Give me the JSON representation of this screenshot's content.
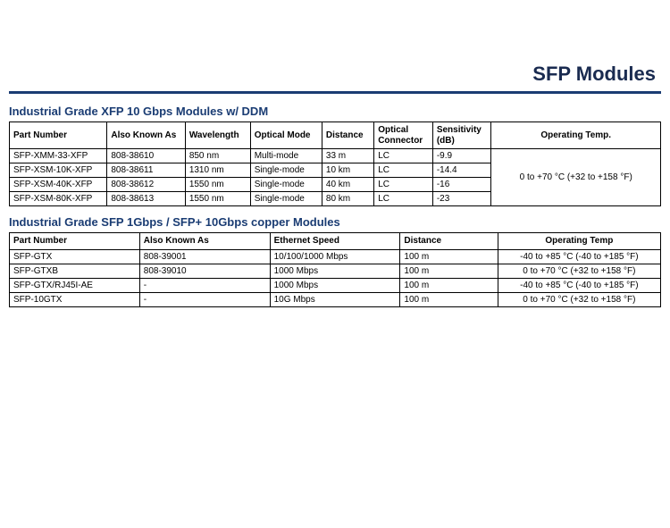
{
  "page_title": "SFP Modules",
  "colors": {
    "title_color": "#1a2b50",
    "rule_color": "#1a3c73",
    "section_title_color": "#1a3c73",
    "border_color": "#000000",
    "background": "#ffffff",
    "text": "#000000"
  },
  "table1": {
    "title": "Industrial Grade XFP 10 Gbps Modules w/ DDM",
    "col_widths_pct": [
      15,
      12,
      10,
      11,
      8,
      9,
      9,
      26
    ],
    "headers": [
      "Part Number",
      "Also Known As",
      "Wavelength",
      "Optical Mode",
      "Distance",
      "Optical\nConnector",
      "Sensitivity\n(dB)",
      "Operating Temp."
    ],
    "header_align": [
      "left",
      "left",
      "left",
      "left",
      "left",
      "left",
      "left",
      "center"
    ],
    "merged_operating_temp": "0 to +70 °C (+32 to +158 °F)",
    "rows": [
      [
        "SFP-XMM-33-XFP",
        "808-38610",
        "850 nm",
        "Multi-mode",
        "33 m",
        "LC",
        "-9.9"
      ],
      [
        "SFP-XSM-10K-XFP",
        "808-38611",
        "1310 nm",
        "Single-mode",
        "10 km",
        "LC",
        "-14.4"
      ],
      [
        "SFP-XSM-40K-XFP",
        "808-38612",
        "1550 nm",
        "Single-mode",
        "40 km",
        "LC",
        "-16"
      ],
      [
        "SFP-XSM-80K-XFP",
        "808-38613",
        "1550 nm",
        "Single-mode",
        "80 km",
        "LC",
        "-23"
      ]
    ]
  },
  "table2": {
    "title": "Industrial Grade SFP 1Gbps / SFP+ 10Gbps copper Modules",
    "col_widths_pct": [
      20,
      20,
      20,
      15,
      25
    ],
    "headers": [
      "Part Number",
      "Also Known As",
      "Ethernet Speed",
      "Distance",
      "Operating Temp"
    ],
    "header_align": [
      "left",
      "left",
      "left",
      "left",
      "center"
    ],
    "rows": [
      [
        "SFP-GTX",
        "808-39001",
        "10/100/1000 Mbps",
        "100 m",
        "-40 to +85 °C (-40 to +185 °F)"
      ],
      [
        "SFP-GTXB",
        "808-39010",
        "1000 Mbps",
        "100 m",
        "0 to +70 °C (+32 to +158 °F)"
      ],
      [
        "SFP-GTX/RJ45I-AE",
        "-",
        "1000 Mbps",
        "100 m",
        "-40 to +85 °C (-40 to +185 °F)"
      ],
      [
        "SFP-10GTX",
        "-",
        "10G Mbps",
        "100 m",
        "0 to +70 °C (+32 to +158 °F)"
      ]
    ],
    "last_col_align": "center"
  }
}
